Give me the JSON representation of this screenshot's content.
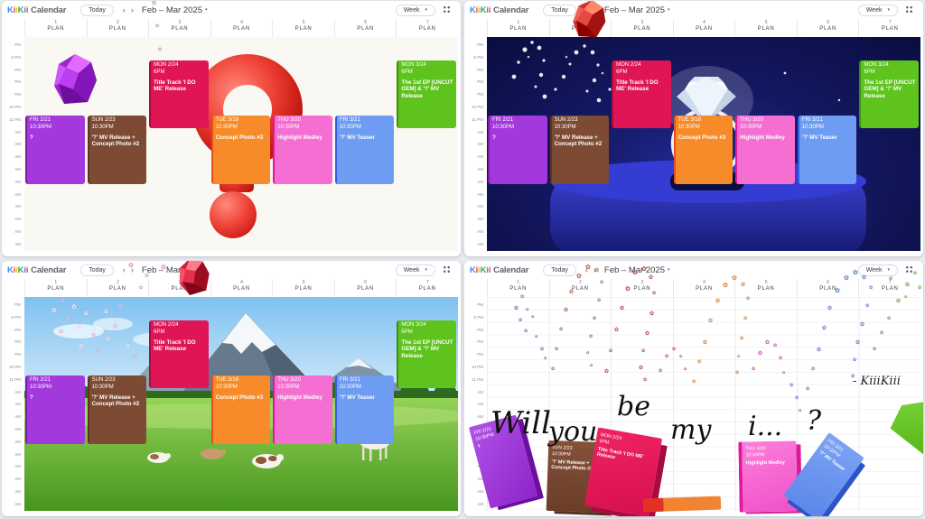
{
  "header": {
    "logo_letters": [
      [
        "K",
        "#4285F4"
      ],
      [
        "i",
        "#EA4335"
      ],
      [
        "i",
        "#FBBC04"
      ],
      [
        "K",
        "#34A853"
      ],
      [
        "i",
        "#4285F4"
      ],
      [
        "i",
        "#EA4335"
      ]
    ],
    "logo_suffix": "Calendar",
    "today_label": "Today",
    "prev_icon": "‹",
    "next_icon": "›",
    "date_title": "Feb – Mar 2025",
    "caret_icon": "▾",
    "view_label": "Week"
  },
  "columns": [
    {
      "num": "1",
      "label": "PLAN"
    },
    {
      "num": "2",
      "label": "PLAN"
    },
    {
      "num": "3",
      "label": "PLAN"
    },
    {
      "num": "4",
      "label": "PLAN"
    },
    {
      "num": "5",
      "label": "PLAN"
    },
    {
      "num": "6",
      "label": "PLAN"
    },
    {
      "num": "7",
      "label": "PLAN"
    }
  ],
  "time_labels": [
    "PM",
    "6 PM",
    "PM",
    "PM",
    "PM",
    "10 PM",
    "11 PM",
    "AM",
    "AM",
    "AM",
    "AM",
    "AM",
    "AM",
    "AM",
    "AM",
    "AM",
    "AM"
  ],
  "events": [
    {
      "id": "fri-221",
      "day": "FRI 2/21",
      "time": "10:30PM",
      "title": "?",
      "col": 1,
      "slot": "late",
      "bg": "#a338dd",
      "edge": "#7b1fa2"
    },
    {
      "id": "sun-223",
      "day": "SUN 2/23",
      "time": "10:30PM",
      "title": "'?' MV Release + Concept Photo #2",
      "col": 2,
      "slot": "late",
      "bg": "#7d4b33",
      "edge": "#5d3322"
    },
    {
      "id": "mon-224",
      "day": "MON 2/24",
      "time": "6PM",
      "title": "Title Track 'I DO ME' Release",
      "col": 3,
      "slot": "evening",
      "bg": "#e01556",
      "edge": "#ad0c3f"
    },
    {
      "id": "tue-318",
      "day": "TUE 3/18",
      "time": "10:30PM",
      "title": "Concept Photo #3",
      "col": 4,
      "slot": "late",
      "bg": "#f78b29",
      "edge": "#e94e1b"
    },
    {
      "id": "thu-320",
      "day": "THU 3/20",
      "time": "10:30PM",
      "title": "Highlight Medley",
      "col": 5,
      "slot": "late",
      "bg": "#f56fd3",
      "edge": "#e3179e"
    },
    {
      "id": "fri-321",
      "day": "FRI 3/21",
      "time": "10:30PM",
      "title": "'?' MV Teaser",
      "col": 6,
      "slot": "late",
      "bg": "#6f9cf3",
      "edge": "#2e5fe3"
    },
    {
      "id": "mon-324",
      "day": "MON 3/24",
      "time": "6PM",
      "title": "The 1st EP [UNCUT GEM] & '?' MV Release",
      "col": 7,
      "slot": "evening",
      "bg": "#5ec31c",
      "edge": "#3c8f10"
    }
  ],
  "panels": [
    {
      "name": "calendar-panel-question-mark",
      "scene": "red-question-mark"
    },
    {
      "name": "calendar-panel-ring-box",
      "scene": "diamond-ring"
    },
    {
      "name": "calendar-panel-alpine-meadow",
      "scene": "alpine-meadow"
    },
    {
      "name": "calendar-panel-proposal",
      "scene": "proposal-message"
    }
  ],
  "proposal": {
    "words": [
      {
        "t": "Will"
      },
      {
        "t": "you"
      },
      {
        "t": "be"
      },
      {
        "t": "my"
      },
      {
        "t": "i..."
      },
      {
        "t": "?"
      }
    ],
    "signature": "- KiiiKiii"
  },
  "flower_icon": "✿"
}
